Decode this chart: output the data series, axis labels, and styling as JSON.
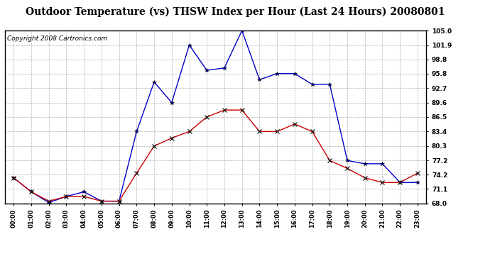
{
  "title": "Outdoor Temperature (vs) THSW Index per Hour (Last 24 Hours) 20080801",
  "copyright": "Copyright 2008 Cartronics.com",
  "hours": [
    "00:00",
    "01:00",
    "02:00",
    "03:00",
    "04:00",
    "05:00",
    "06:00",
    "07:00",
    "08:00",
    "09:00",
    "10:00",
    "11:00",
    "12:00",
    "13:00",
    "14:00",
    "15:00",
    "16:00",
    "17:00",
    "18:00",
    "19:00",
    "20:00",
    "21:00",
    "22:00",
    "23:00"
  ],
  "temp": [
    73.5,
    70.5,
    68.5,
    69.5,
    69.5,
    68.5,
    68.5,
    74.5,
    80.3,
    82.0,
    83.4,
    86.5,
    88.0,
    88.0,
    83.4,
    83.4,
    85.0,
    83.4,
    77.2,
    75.5,
    73.5,
    72.5,
    72.5,
    74.5
  ],
  "thsw": [
    73.5,
    70.5,
    68.2,
    69.5,
    70.5,
    68.5,
    68.5,
    83.4,
    94.0,
    89.6,
    101.9,
    96.5,
    97.0,
    105.0,
    94.5,
    95.8,
    95.8,
    93.5,
    93.5,
    77.2,
    76.5,
    76.5,
    72.5,
    72.5
  ],
  "ylim": [
    68.0,
    105.0
  ],
  "yticks": [
    68.0,
    71.1,
    74.2,
    77.2,
    80.3,
    83.4,
    86.5,
    89.6,
    92.7,
    95.8,
    98.8,
    101.9,
    105.0
  ],
  "temp_color": "#cc0000",
  "thsw_color": "#0000cc",
  "bg_color": "#ffffff",
  "grid_color": "#aaaaaa",
  "title_fontsize": 10,
  "copyright_fontsize": 6.5
}
